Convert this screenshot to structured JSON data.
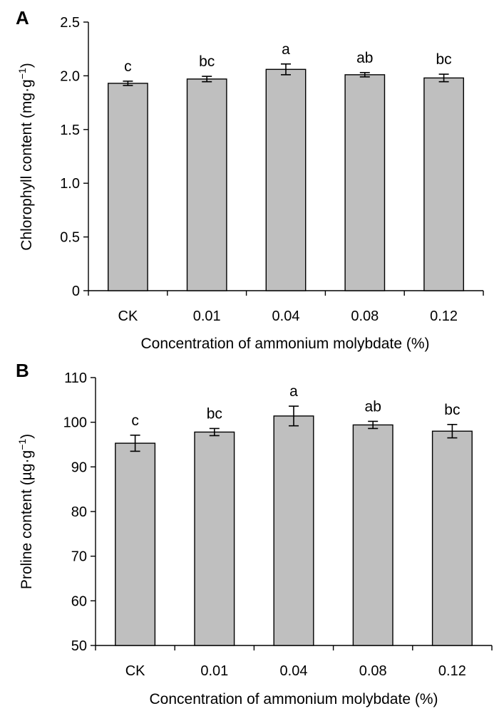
{
  "chart_data": [
    {
      "type": "bar",
      "panel": "A",
      "categories": [
        "CK",
        "0.01",
        "0.04",
        "0.08",
        "0.12"
      ],
      "values": [
        1.93,
        1.97,
        2.06,
        2.01,
        1.98
      ],
      "errors": [
        0.02,
        0.025,
        0.05,
        0.02,
        0.035
      ],
      "significance": [
        "c",
        "bc",
        "a",
        "ab",
        "bc"
      ],
      "xlabel": "Concentration of ammonium molybdate (%)",
      "ylabel": "Chlorophyll content (mg·g",
      "ylabel_sup": "−1",
      "ylabel_end": ")",
      "ylim": [
        0,
        2.5
      ],
      "yticks": [
        0,
        0.5,
        1.0,
        1.5,
        2.0,
        2.5
      ],
      "ytick_labels": [
        "0",
        "0.5",
        "1.0",
        "1.5",
        "2.0",
        "2.5"
      ],
      "bar_color": "#bfbfbf",
      "grid": false
    },
    {
      "type": "bar",
      "panel": "B",
      "categories": [
        "CK",
        "0.01",
        "0.04",
        "0.08",
        "0.12"
      ],
      "values": [
        95.3,
        97.8,
        101.4,
        99.4,
        98.0
      ],
      "errors": [
        1.8,
        0.8,
        2.2,
        0.8,
        1.5
      ],
      "significance": [
        "c",
        "bc",
        "a",
        "ab",
        "bc"
      ],
      "xlabel": "Concentration of ammonium molybdate (%)",
      "ylabel": "Proline content (µg·g",
      "ylabel_sup": "−1",
      "ylabel_end": ")",
      "ylim": [
        50,
        110
      ],
      "yticks": [
        50,
        60,
        70,
        80,
        90,
        100,
        110
      ],
      "ytick_labels": [
        "50",
        "60",
        "70",
        "80",
        "90",
        "100",
        "110"
      ],
      "bar_color": "#bfbfbf",
      "grid": false
    }
  ]
}
